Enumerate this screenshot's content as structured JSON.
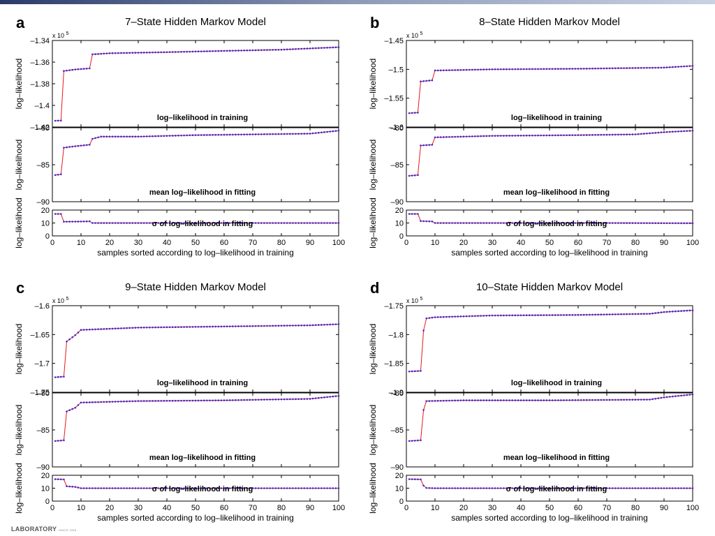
{
  "footer": {
    "lab_label": "LABORATORY",
    "since_label": "SINCE 1998"
  },
  "chart_data": [
    {
      "panel_letter": "a",
      "title": "7–State Hidden Markov Model",
      "type": "line",
      "x": {
        "label": "samples sorted according to log–likelihood in training",
        "lim": [
          0,
          100
        ],
        "ticks": [
          0,
          10,
          20,
          30,
          40,
          50,
          60,
          70,
          80,
          90,
          100
        ]
      },
      "subplots": [
        {
          "id": "training",
          "annotation": "log–likelihood in training",
          "ylabel": "log–likelihood",
          "scale_label": "x 10",
          "scale_exponent": "5",
          "ylim": [
            -1.42,
            -1.34
          ],
          "yticks": [
            -1.42,
            -1.4,
            -1.38,
            -1.36,
            -1.34
          ],
          "ytick_labels": [
            "-1.42",
            "-1.4",
            "-1.38",
            "-1.36",
            "-1.34"
          ],
          "points": [
            [
              1,
              -1.4142
            ],
            [
              3,
              -1.414
            ],
            [
              4,
              -1.3682
            ],
            [
              8,
              -1.3668
            ],
            [
              13,
              -1.3658
            ],
            [
              14,
              -1.3528
            ],
            [
              20,
              -1.3518
            ],
            [
              40,
              -1.3508
            ],
            [
              60,
              -1.3496
            ],
            [
              80,
              -1.3485
            ],
            [
              100,
              -1.3462
            ]
          ]
        },
        {
          "id": "mean",
          "annotation": "mean log–likelihood in fitting",
          "ylabel": "log–likelihood",
          "ylim": [
            -90,
            -80
          ],
          "yticks": [
            -90,
            -85,
            -80
          ],
          "ytick_labels": [
            "-90",
            "-85",
            "-80"
          ],
          "points": [
            [
              1,
              -86.4
            ],
            [
              3,
              -86.3
            ],
            [
              4,
              -82.7
            ],
            [
              8,
              -82.5
            ],
            [
              13,
              -82.3
            ],
            [
              14,
              -81.5
            ],
            [
              17,
              -81.2
            ],
            [
              30,
              -81.2
            ],
            [
              50,
              -81.0
            ],
            [
              70,
              -80.9
            ],
            [
              90,
              -80.8
            ],
            [
              100,
              -80.4
            ]
          ]
        },
        {
          "id": "sigma",
          "annotation": "σ of log–likelihood in fitting",
          "ylabel": "log–likelihood",
          "ylim": [
            0,
            20
          ],
          "yticks": [
            0,
            10,
            20
          ],
          "ytick_labels": [
            "0",
            "10",
            "20"
          ],
          "points": [
            [
              1,
              17
            ],
            [
              3,
              17
            ],
            [
              4,
              11
            ],
            [
              9,
              11.1
            ],
            [
              13,
              11.3
            ],
            [
              14,
              10
            ],
            [
              30,
              10
            ],
            [
              60,
              10
            ],
            [
              100,
              10
            ]
          ]
        }
      ]
    },
    {
      "panel_letter": "b",
      "title": "8–State Hidden Markov Model",
      "type": "line",
      "x": {
        "label": "samples sorted according to log–likelihood in training",
        "lim": [
          0,
          100
        ],
        "ticks": [
          0,
          10,
          20,
          30,
          40,
          50,
          60,
          70,
          80,
          90,
          100
        ]
      },
      "subplots": [
        {
          "id": "training",
          "annotation": "log–likelihood in training",
          "ylabel": "log–likelihood",
          "scale_label": "x 10",
          "scale_exponent": "5",
          "ylim": [
            -1.6,
            -1.45
          ],
          "yticks": [
            -1.6,
            -1.55,
            -1.5,
            -1.45
          ],
          "ytick_labels": [
            "-1.6",
            "-1.55",
            "-1.5",
            "-1.45"
          ],
          "points": [
            [
              1,
              -1.576
            ],
            [
              4,
              -1.575
            ],
            [
              5,
              -1.521
            ],
            [
              9,
              -1.519
            ],
            [
              10,
              -1.502
            ],
            [
              30,
              -1.5
            ],
            [
              60,
              -1.499
            ],
            [
              90,
              -1.497
            ],
            [
              100,
              -1.494
            ]
          ]
        },
        {
          "id": "mean",
          "annotation": "mean log–likelihood in fitting",
          "ylabel": "log–likelihood",
          "ylim": [
            -90,
            -80
          ],
          "yticks": [
            -90,
            -85,
            -80
          ],
          "ytick_labels": [
            "-90",
            "-85",
            "-80"
          ],
          "points": [
            [
              1,
              -86.5
            ],
            [
              4,
              -86.4
            ],
            [
              5,
              -82.4
            ],
            [
              9,
              -82.3
            ],
            [
              10,
              -81.3
            ],
            [
              30,
              -81.1
            ],
            [
              60,
              -81.0
            ],
            [
              80,
              -80.9
            ],
            [
              90,
              -80.6
            ],
            [
              100,
              -80.4
            ]
          ]
        },
        {
          "id": "sigma",
          "annotation": "σ of log–likelihood in fitting",
          "ylabel": "log–likelihood",
          "ylim": [
            0,
            20
          ],
          "yticks": [
            0,
            10,
            20
          ],
          "ytick_labels": [
            "0",
            "10",
            "20"
          ],
          "points": [
            [
              1,
              17
            ],
            [
              4,
              17
            ],
            [
              5,
              11.5
            ],
            [
              9,
              11.2
            ],
            [
              10,
              10
            ],
            [
              40,
              10
            ],
            [
              70,
              10
            ],
            [
              100,
              9.8
            ]
          ]
        }
      ]
    },
    {
      "panel_letter": "c",
      "title": "9–State Hidden Markov Model",
      "type": "line",
      "x": {
        "label": "samples sorted according to log–likelihood in training",
        "lim": [
          0,
          100
        ],
        "ticks": [
          0,
          10,
          20,
          30,
          40,
          50,
          60,
          70,
          80,
          90,
          100
        ]
      },
      "subplots": [
        {
          "id": "training",
          "annotation": "log–likelihood in training",
          "ylabel": "log–likelihood",
          "scale_label": "x 10",
          "scale_exponent": "5",
          "ylim": [
            -1.75,
            -1.6
          ],
          "yticks": [
            -1.75,
            -1.7,
            -1.65,
            -1.6
          ],
          "ytick_labels": [
            "-1.75",
            "-1.7",
            "-1.65",
            "-1.6"
          ],
          "points": [
            [
              1,
              -1.724
            ],
            [
              4,
              -1.723
            ],
            [
              5,
              -1.662
            ],
            [
              8,
              -1.651
            ],
            [
              10,
              -1.642
            ],
            [
              30,
              -1.638
            ],
            [
              60,
              -1.636
            ],
            [
              90,
              -1.634
            ],
            [
              100,
              -1.632
            ]
          ]
        },
        {
          "id": "mean",
          "annotation": "mean log–likelihood in fitting",
          "ylabel": "log–likelihood",
          "ylim": [
            -90,
            -80
          ],
          "yticks": [
            -90,
            -85,
            -80
          ],
          "ytick_labels": [
            "-90",
            "-85",
            "-80"
          ],
          "points": [
            [
              1,
              -86.5
            ],
            [
              4,
              -86.4
            ],
            [
              5,
              -82.5
            ],
            [
              8,
              -82.0
            ],
            [
              10,
              -81.3
            ],
            [
              30,
              -81.1
            ],
            [
              60,
              -81.0
            ],
            [
              90,
              -80.8
            ],
            [
              100,
              -80.4
            ]
          ]
        },
        {
          "id": "sigma",
          "annotation": "σ of log–likelihood in fitting",
          "ylabel": "log–likelihood",
          "ylim": [
            0,
            20
          ],
          "yticks": [
            0,
            10,
            20
          ],
          "ytick_labels": [
            "0",
            "10",
            "20"
          ],
          "points": [
            [
              1,
              17
            ],
            [
              4,
              16.8
            ],
            [
              5,
              11.5
            ],
            [
              8,
              11
            ],
            [
              10,
              10
            ],
            [
              40,
              10
            ],
            [
              70,
              10
            ],
            [
              100,
              10
            ]
          ]
        }
      ]
    },
    {
      "panel_letter": "d",
      "title": "10–State Hidden Markov Model",
      "type": "line",
      "x": {
        "label": "samples sorted according to log–likelihood in training",
        "lim": [
          0,
          100
        ],
        "ticks": [
          0,
          10,
          20,
          30,
          40,
          50,
          60,
          70,
          80,
          90,
          100
        ]
      },
      "subplots": [
        {
          "id": "training",
          "annotation": "log–likelihood in training",
          "ylabel": "log–likelihood",
          "scale_label": "x 10",
          "scale_exponent": "5",
          "ylim": [
            -1.9,
            -1.75
          ],
          "yticks": [
            -1.9,
            -1.85,
            -1.8,
            -1.75
          ],
          "ytick_labels": [
            "-1.9",
            "-1.85",
            "-1.8",
            "-1.75"
          ],
          "points": [
            [
              1,
              -1.864
            ],
            [
              5,
              -1.863
            ],
            [
              6,
              -1.793
            ],
            [
              7,
              -1.772
            ],
            [
              10,
              -1.77
            ],
            [
              30,
              -1.767
            ],
            [
              60,
              -1.766
            ],
            [
              85,
              -1.764
            ],
            [
              90,
              -1.761
            ],
            [
              100,
              -1.758
            ]
          ]
        },
        {
          "id": "mean",
          "annotation": "mean log–likelihood in fitting",
          "ylabel": "log–likelihood",
          "ylim": [
            -90,
            -80
          ],
          "yticks": [
            -90,
            -85,
            -80
          ],
          "ytick_labels": [
            "-90",
            "-85",
            "-80"
          ],
          "points": [
            [
              1,
              -86.5
            ],
            [
              5,
              -86.4
            ],
            [
              6,
              -82.3
            ],
            [
              7,
              -81.1
            ],
            [
              20,
              -81.0
            ],
            [
              50,
              -81.0
            ],
            [
              85,
              -80.9
            ],
            [
              90,
              -80.6
            ],
            [
              100,
              -80.2
            ]
          ]
        },
        {
          "id": "sigma",
          "annotation": "σ of log–likelihood in fitting",
          "ylabel": "log–likelihood",
          "ylim": [
            0,
            20
          ],
          "yticks": [
            0,
            10,
            20
          ],
          "ytick_labels": [
            "0",
            "10",
            "20"
          ],
          "points": [
            [
              1,
              17
            ],
            [
              5,
              16.8
            ],
            [
              6,
              12
            ],
            [
              7,
              10.2
            ],
            [
              10,
              10
            ],
            [
              40,
              10
            ],
            [
              70,
              10
            ],
            [
              100,
              10
            ]
          ]
        }
      ]
    }
  ]
}
